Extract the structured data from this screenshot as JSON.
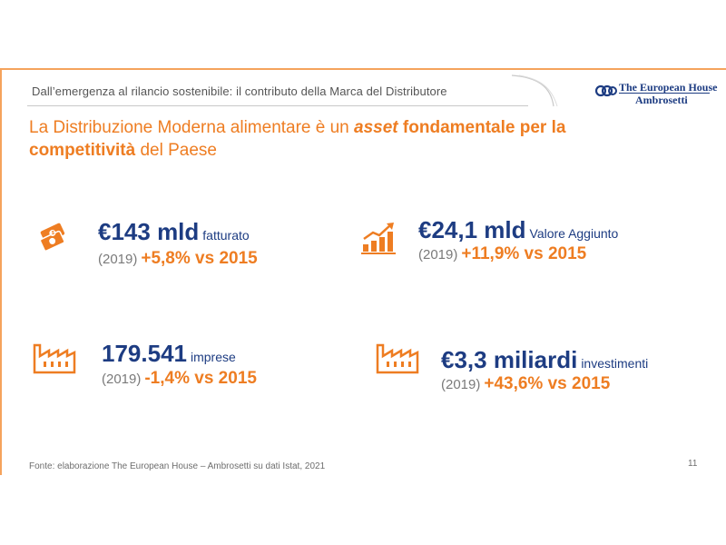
{
  "header": {
    "subtitle": "Dall’emergenza al rilancio sostenibile: il contributo della Marca del Distributore",
    "logo_line1": "The European House",
    "logo_line2": "Ambrosetti"
  },
  "title": {
    "part1": "La Distribuzione Moderna alimentare è un ",
    "emphasis": "asset",
    "part2": " fondamentale per la",
    "line2_bold": "competitività",
    "line2_rest": " del Paese"
  },
  "kpis": [
    {
      "icon": "money-icon",
      "value": "€143 mld",
      "unit": "fatturato",
      "year": "(2019)",
      "delta": "+5,8% vs 2015"
    },
    {
      "icon": "growth-chart-icon",
      "value": "€24,1 mld",
      "unit": "Valore Aggiunto",
      "year": "(2019)",
      "delta": "+11,9% vs 2015"
    },
    {
      "icon": "factory-icon",
      "value": "179.541",
      "unit": "imprese",
      "year": "(2019)",
      "delta": "-1,4% vs 2015"
    },
    {
      "icon": "factory-icon",
      "value": "€3,3 miliardi",
      "unit": "investimenti",
      "year": "(2019)",
      "delta": "+43,6% vs 2015"
    }
  ],
  "footer": {
    "source": "Fonte: elaborazione The European House – Ambrosetti su dati Istat, 2021",
    "page": "11"
  },
  "colors": {
    "accent": "#ee7d22",
    "navy": "#1d3c82",
    "gray": "#7a7a7a"
  }
}
